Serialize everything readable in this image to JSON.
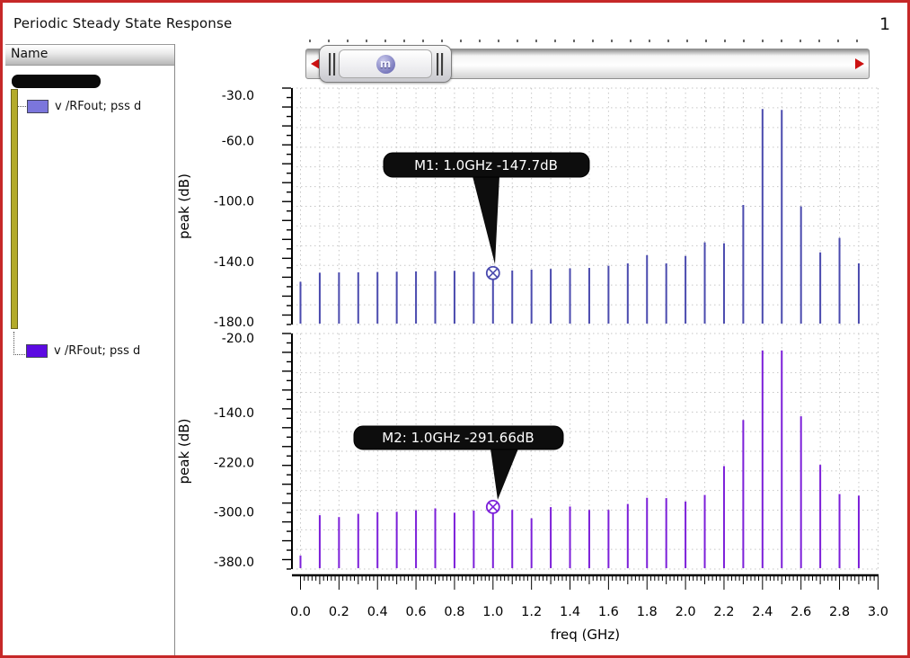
{
  "window": {
    "title": "Periodic Steady State Response",
    "page_number": "1",
    "frame_color": "#c62828"
  },
  "sidebar": {
    "header": "Name",
    "items": [
      {
        "label": "v /RFout; pss d",
        "swatch_color": "#7b76dc"
      },
      {
        "label": "v /RFout; pss d",
        "swatch_color": "#5c0ae2"
      }
    ]
  },
  "slider": {
    "badge_glyph": "m",
    "arrow_color": "#cc1111"
  },
  "xaxis": {
    "label": "freq (GHz)",
    "tick_values": [
      0.0,
      0.2,
      0.4,
      0.6,
      0.8,
      1.0,
      1.2,
      1.4,
      1.6,
      1.8,
      2.0,
      2.2,
      2.4,
      2.6,
      2.8,
      3.0
    ],
    "tick_labels": [
      "0.0",
      "0.2",
      "0.4",
      "0.6",
      "0.8",
      "1.0",
      "1.2",
      "1.4",
      "1.6",
      "1.8",
      "2.0",
      "2.2",
      "2.4",
      "2.6",
      "2.8",
      "3.0"
    ]
  },
  "chart_data": [
    {
      "type": "stem",
      "series_label": "v /RFout; pss d",
      "ylabel": "peak (dB)",
      "stem_color": "#4a4aae",
      "grid": "dotted",
      "xlim": [
        0.0,
        3.0
      ],
      "ylim": [
        -182,
        -25
      ],
      "ytick_values": [
        -30,
        -60,
        -100,
        -140,
        -180
      ],
      "ytick_labels": [
        "-30.0",
        "-60.0",
        "-100.0",
        "-140.0",
        "-180.0"
      ],
      "x_GHz": [
        0.0,
        0.1,
        0.2,
        0.3,
        0.4,
        0.5,
        0.6,
        0.7,
        0.8,
        0.9,
        1.0,
        1.1,
        1.2,
        1.3,
        1.4,
        1.5,
        1.6,
        1.7,
        1.8,
        1.9,
        2.0,
        2.1,
        2.2,
        2.3,
        2.4,
        2.5,
        2.6,
        2.7,
        2.8,
        2.9
      ],
      "values": [
        -153.5,
        -147.5,
        -147.3,
        -147.2,
        -147.0,
        -146.8,
        -146.6,
        -146.4,
        -146.2,
        -146.9,
        -147.7,
        -146.0,
        -145.5,
        -145.0,
        -144.6,
        -144.3,
        -142.9,
        -141.3,
        -135.9,
        -141.3,
        -136.4,
        -127.4,
        -128.0,
        -102.6,
        -39.1,
        -39.7,
        -103.6,
        -134.0,
        -124.4,
        -141.3
      ],
      "marker": {
        "name": "M1",
        "x_GHz": 1.0,
        "value": -147.7,
        "label": "M1: 1.0GHz -147.7dB"
      }
    },
    {
      "type": "stem",
      "series_label": "v /RFout; pss d",
      "ylabel": "peak (dB)",
      "stem_color": "#7c1fd9",
      "grid": "dotted",
      "xlim": [
        0.0,
        3.0
      ],
      "ylim": [
        -391,
        -13
      ],
      "ytick_values": [
        -20,
        -140,
        -220,
        -300,
        -380
      ],
      "ytick_labels": [
        "-20.0",
        "-140.0",
        "-220.0",
        "-300.0",
        "-380.0"
      ],
      "x_GHz": [
        0.0,
        0.1,
        0.2,
        0.3,
        0.4,
        0.5,
        0.6,
        0.7,
        0.8,
        0.9,
        1.0,
        1.1,
        1.2,
        1.3,
        1.4,
        1.5,
        1.6,
        1.7,
        1.8,
        1.9,
        2.0,
        2.1,
        2.2,
        2.3,
        2.4,
        2.5,
        2.6,
        2.7,
        2.8,
        2.9
      ],
      "values": [
        -370.0,
        -305.0,
        -308.0,
        -303.0,
        -300.0,
        -299.5,
        -297.0,
        -294.0,
        -301.0,
        -297.5,
        -291.66,
        -296.5,
        -310.0,
        -292.0,
        -291.0,
        -296.5,
        -296.5,
        -287.0,
        -277.0,
        -277.5,
        -283.0,
        -272.5,
        -226.0,
        -152.0,
        -40.0,
        -40.0,
        -146.0,
        -224.0,
        -271.0,
        -273.5
      ],
      "marker": {
        "name": "M2",
        "x_GHz": 1.0,
        "value": -291.66,
        "label": "M2: 1.0GHz -291.66dB"
      }
    }
  ]
}
